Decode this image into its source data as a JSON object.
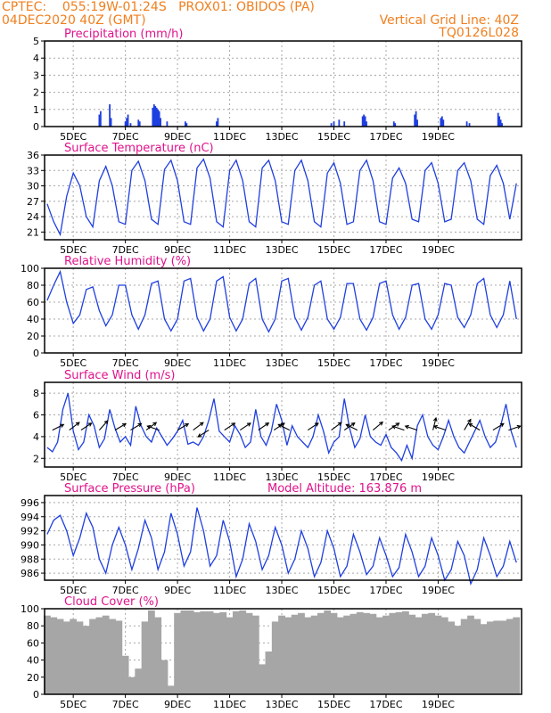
{
  "header": {
    "station": "CPTEC:    055:19W-01:24S   PROX01: OBIDOS (PA)",
    "date": "04DEC2020 40Z (GMT)",
    "grid_note": "Vertical Grid Line: 40Z",
    "code": "TQ0126L028"
  },
  "colors": {
    "header": "#f07f1e",
    "title": "#e0128b",
    "series": "#1f3fe0",
    "bar": "#1f3fe0",
    "cloud": "#a6a6a6"
  },
  "x_tick_labels": [
    "5DEC",
    "7DEC",
    "9DEC",
    "11DEC",
    "13DEC",
    "15DEC",
    "17DEC",
    "19DEC"
  ],
  "chart_data": [
    {
      "id": "precip",
      "type": "bar",
      "title": "Precipitation (mm/h)",
      "ylim": [
        0,
        5
      ],
      "yticks": [
        0,
        1,
        2,
        3,
        4,
        5
      ],
      "grid": true,
      "x_unit": "days since 04DEC2020 00Z",
      "x": [
        2.0,
        2.05,
        2.4,
        2.45,
        3.0,
        3.05,
        3.1,
        3.2,
        3.5,
        3.55,
        4.05,
        4.1,
        4.15,
        4.2,
        4.25,
        4.3,
        4.35,
        4.6,
        5.3,
        5.35,
        6.5,
        6.55,
        10.9,
        11.0,
        11.2,
        11.4,
        12.1,
        12.15,
        12.2,
        12.25,
        13.3,
        13.35,
        14.1,
        14.15,
        14.2,
        15.1,
        15.15,
        15.2,
        16.1,
        16.2,
        17.3,
        17.35,
        17.4,
        17.45
      ],
      "values": [
        0.7,
        0.9,
        1.3,
        0.5,
        0.3,
        0.5,
        0.7,
        0.2,
        0.4,
        0.3,
        1.1,
        1.3,
        1.2,
        1.1,
        1.0,
        0.9,
        0.5,
        0.3,
        0.3,
        0.2,
        0.3,
        0.5,
        0.2,
        0.3,
        0.4,
        0.3,
        0.6,
        0.7,
        0.6,
        0.3,
        0.3,
        0.2,
        0.7,
        0.9,
        0.4,
        0.5,
        0.6,
        0.4,
        0.3,
        0.2,
        0.8,
        0.6,
        0.4,
        0.2
      ]
    },
    {
      "id": "temp",
      "type": "line",
      "title": "Surface Temperature (nC)",
      "ylim": [
        19.5,
        36
      ],
      "yticks": [
        21,
        24,
        27,
        30,
        33,
        36
      ],
      "grid": true,
      "x": [
        0.0,
        0.25,
        0.5,
        0.75,
        1.0,
        1.25,
        1.5,
        1.75,
        2.0,
        2.25,
        2.5,
        2.75,
        3.0,
        3.25,
        3.5,
        3.75,
        4.0,
        4.25,
        4.5,
        4.75,
        5.0,
        5.25,
        5.5,
        5.75,
        6.0,
        6.25,
        6.5,
        6.75,
        7.0,
        7.25,
        7.5,
        7.75,
        8.0,
        8.25,
        8.5,
        8.75,
        9.0,
        9.25,
        9.5,
        9.75,
        10.0,
        10.25,
        10.5,
        10.75,
        11.0,
        11.25,
        11.5,
        11.75,
        12.0,
        12.25,
        12.5,
        12.75,
        13.0,
        13.25,
        13.5,
        13.75,
        14.0,
        14.25,
        14.5,
        14.75,
        15.0,
        15.25,
        15.5,
        15.75,
        16.0,
        16.25,
        16.5,
        16.75,
        17.0,
        17.25,
        17.5,
        17.75,
        18.0
      ],
      "values": [
        26.5,
        23.0,
        20.5,
        28.0,
        32.5,
        30.0,
        24.0,
        22.0,
        31.0,
        33.8,
        30.0,
        23.0,
        22.5,
        33.0,
        34.8,
        31.0,
        23.5,
        22.5,
        33.2,
        35.0,
        31.0,
        23.0,
        22.5,
        33.5,
        35.2,
        31.5,
        23.0,
        22.0,
        33.0,
        35.0,
        31.0,
        23.0,
        22.0,
        33.5,
        35.0,
        31.0,
        23.0,
        22.5,
        33.0,
        35.0,
        31.0,
        23.0,
        22.0,
        32.5,
        34.5,
        30.5,
        22.5,
        23.0,
        33.0,
        35.0,
        31.0,
        23.0,
        22.5,
        31.5,
        33.5,
        30.5,
        23.5,
        23.0,
        33.0,
        34.5,
        30.5,
        23.0,
        23.5,
        33.0,
        34.5,
        31.0,
        23.5,
        22.5,
        32.0,
        34.0,
        30.5,
        23.5,
        30.5
      ]
    },
    {
      "id": "rh",
      "type": "line",
      "title": "Relative Humidity (%)",
      "ylim": [
        0,
        100
      ],
      "yticks": [
        0,
        20,
        40,
        60,
        80,
        100
      ],
      "grid": true,
      "x": [
        0.0,
        0.25,
        0.5,
        0.75,
        1.0,
        1.25,
        1.5,
        1.75,
        2.0,
        2.25,
        2.5,
        2.75,
        3.0,
        3.25,
        3.5,
        3.75,
        4.0,
        4.25,
        4.5,
        4.75,
        5.0,
        5.25,
        5.5,
        5.75,
        6.0,
        6.25,
        6.5,
        6.75,
        7.0,
        7.25,
        7.5,
        7.75,
        8.0,
        8.25,
        8.5,
        8.75,
        9.0,
        9.25,
        9.5,
        9.75,
        10.0,
        10.25,
        10.5,
        10.75,
        11.0,
        11.25,
        11.5,
        11.75,
        12.0,
        12.25,
        12.5,
        12.75,
        13.0,
        13.25,
        13.5,
        13.75,
        14.0,
        14.25,
        14.5,
        14.75,
        15.0,
        15.25,
        15.5,
        15.75,
        16.0,
        16.25,
        16.5,
        16.75,
        17.0,
        17.25,
        17.5,
        17.75,
        18.0
      ],
      "values": [
        62,
        80,
        96,
        60,
        35,
        45,
        75,
        78,
        50,
        32,
        45,
        80,
        80,
        45,
        28,
        45,
        82,
        85,
        40,
        26,
        40,
        85,
        88,
        42,
        26,
        40,
        85,
        90,
        42,
        26,
        40,
        82,
        88,
        40,
        25,
        40,
        85,
        88,
        42,
        27,
        42,
        80,
        85,
        40,
        28,
        42,
        82,
        82,
        40,
        27,
        42,
        82,
        85,
        45,
        28,
        42,
        80,
        82,
        40,
        28,
        45,
        82,
        80,
        42,
        30,
        45,
        82,
        88,
        45,
        30,
        45,
        85,
        40
      ]
    },
    {
      "id": "wind",
      "type": "line",
      "title": "Surface Wind (m/s)",
      "ylim": [
        1.2,
        9
      ],
      "yticks": [
        2,
        4,
        6,
        8
      ],
      "grid": true,
      "x": [
        0.0,
        0.2,
        0.4,
        0.6,
        0.8,
        1.0,
        1.2,
        1.4,
        1.6,
        1.8,
        2.0,
        2.2,
        2.4,
        2.6,
        2.8,
        3.0,
        3.2,
        3.4,
        3.6,
        3.8,
        4.0,
        4.2,
        4.4,
        4.6,
        4.8,
        5.0,
        5.2,
        5.4,
        5.6,
        5.8,
        6.0,
        6.2,
        6.4,
        6.6,
        6.8,
        7.0,
        7.2,
        7.4,
        7.6,
        7.8,
        8.0,
        8.2,
        8.4,
        8.6,
        8.8,
        9.0,
        9.2,
        9.4,
        9.6,
        9.8,
        10.0,
        10.2,
        10.4,
        10.6,
        10.8,
        11.0,
        11.2,
        11.4,
        11.6,
        11.8,
        12.0,
        12.2,
        12.4,
        12.6,
        12.8,
        13.0,
        13.2,
        13.4,
        13.6,
        13.8,
        14.0,
        14.2,
        14.4,
        14.6,
        14.8,
        15.0,
        15.2,
        15.4,
        15.6,
        15.8,
        16.0,
        16.2,
        16.4,
        16.6,
        16.8,
        17.0,
        17.2,
        17.4,
        17.6,
        17.8,
        18.0
      ],
      "values": [
        3.0,
        2.6,
        3.5,
        6.5,
        8.0,
        4.5,
        2.8,
        3.5,
        6.0,
        5.0,
        3.0,
        3.8,
        6.5,
        4.8,
        3.5,
        4.0,
        3.2,
        6.8,
        5.0,
        4.0,
        3.5,
        4.8,
        4.0,
        3.2,
        3.8,
        4.5,
        5.5,
        3.3,
        3.5,
        3.2,
        4.0,
        5.5,
        7.5,
        4.5,
        4.0,
        3.5,
        5.0,
        4.2,
        3.0,
        3.5,
        6.5,
        4.0,
        3.2,
        4.5,
        7.0,
        5.5,
        3.2,
        5.0,
        4.0,
        3.5,
        3.0,
        4.0,
        6.0,
        4.5,
        2.5,
        3.5,
        4.0,
        7.5,
        4.8,
        3.0,
        3.8,
        6.0,
        4.0,
        3.5,
        3.2,
        4.2,
        3.0,
        2.5,
        1.8,
        3.2,
        2.0,
        5.0,
        6.0,
        4.0,
        3.2,
        2.8,
        4.0,
        5.5,
        4.0,
        3.0,
        2.5,
        3.5,
        4.5,
        5.5,
        4.0,
        3.0,
        3.5,
        5.0,
        7.0,
        4.5,
        3.0
      ],
      "vectors": {
        "x": [
          0.2,
          0.85,
          1.3,
          2.0,
          2.6,
          3.2,
          3.8,
          4.3,
          5.0,
          5.6,
          6.2,
          6.8,
          7.4,
          8.1,
          8.7,
          9.3,
          10.0,
          10.9,
          11.4,
          11.9,
          12.5,
          13.1,
          13.7,
          14.2,
          14.8,
          15.3,
          16.0,
          16.6,
          17.1,
          17.7
        ],
        "u": [
          1.0,
          1.3,
          1.2,
          0.8,
          1.2,
          1.0,
          1.2,
          -1.2,
          1.2,
          1.2,
          -0.8,
          1.2,
          1.2,
          1.3,
          1.2,
          -1.0,
          1.2,
          1.2,
          1.3,
          -1.0,
          1.2,
          1.2,
          -1.2,
          -1.2,
          0.3,
          -1.2,
          0.6,
          -1.2,
          1.0,
          1.2
        ],
        "v": [
          0.5,
          1.0,
          0.8,
          0.9,
          0.7,
          0.6,
          0.9,
          0.4,
          0.7,
          0.9,
          -0.5,
          0.8,
          0.8,
          0.9,
          0.8,
          0.5,
          0.8,
          0.9,
          0.9,
          0.5,
          1.0,
          0.8,
          0.4,
          0.4,
          1.2,
          0.4,
          1.0,
          0.7,
          0.6,
          0.4
        ]
      }
    },
    {
      "id": "pres",
      "type": "line",
      "title": "Surface Pressure (hPa)",
      "annotation": "Model Altitude: 163.876 m",
      "ylim": [
        985,
        997
      ],
      "yticks": [
        986,
        988,
        990,
        992,
        994,
        996
      ],
      "grid": true,
      "x": [
        0.0,
        0.25,
        0.5,
        0.75,
        1.0,
        1.25,
        1.5,
        1.75,
        2.0,
        2.25,
        2.5,
        2.75,
        3.0,
        3.25,
        3.5,
        3.75,
        4.0,
        4.25,
        4.5,
        4.75,
        5.0,
        5.25,
        5.5,
        5.75,
        6.0,
        6.25,
        6.5,
        6.75,
        7.0,
        7.25,
        7.5,
        7.75,
        8.0,
        8.25,
        8.5,
        8.75,
        9.0,
        9.25,
        9.5,
        9.75,
        10.0,
        10.25,
        10.5,
        10.75,
        11.0,
        11.25,
        11.5,
        11.75,
        12.0,
        12.25,
        12.5,
        12.75,
        13.0,
        13.25,
        13.5,
        13.75,
        14.0,
        14.25,
        14.5,
        14.75,
        15.0,
        15.25,
        15.5,
        15.75,
        16.0,
        16.25,
        16.5,
        16.75,
        17.0,
        17.25,
        17.5,
        17.75,
        18.0
      ],
      "values": [
        991.5,
        993.5,
        994.2,
        992.0,
        988.5,
        991.0,
        994.5,
        992.5,
        988.0,
        986.0,
        990.0,
        992.5,
        990.0,
        986.5,
        989.5,
        993.5,
        991.0,
        986.5,
        989.0,
        994.5,
        991.5,
        987.0,
        989.0,
        995.3,
        992.0,
        987.0,
        988.5,
        993.5,
        990.5,
        985.5,
        988.0,
        993.0,
        990.5,
        986.5,
        988.5,
        992.5,
        990.0,
        986.0,
        988.0,
        992.0,
        989.5,
        985.5,
        987.5,
        992.0,
        989.5,
        985.5,
        987.0,
        991.5,
        989.0,
        985.8,
        987.0,
        991.0,
        988.5,
        985.5,
        986.8,
        991.5,
        989.0,
        985.5,
        987.0,
        991.0,
        988.5,
        985.0,
        986.5,
        990.5,
        988.5,
        984.5,
        986.5,
        991.0,
        988.5,
        985.5,
        987.0,
        990.5,
        987.5
      ]
    },
    {
      "id": "cloud",
      "type": "bar",
      "title": "Cloud Cover (%)",
      "ylim": [
        0,
        100
      ],
      "yticks": [
        0,
        20,
        40,
        60,
        80,
        100
      ],
      "grid": true,
      "x": [
        0.0,
        0.25,
        0.5,
        0.75,
        1.0,
        1.25,
        1.5,
        1.75,
        2.0,
        2.25,
        2.5,
        2.75,
        3.0,
        3.25,
        3.5,
        3.75,
        4.0,
        4.25,
        4.5,
        4.75,
        5.0,
        5.25,
        5.5,
        5.75,
        6.0,
        6.25,
        6.5,
        6.75,
        7.0,
        7.25,
        7.5,
        7.75,
        8.0,
        8.25,
        8.5,
        8.75,
        9.0,
        9.25,
        9.5,
        9.75,
        10.0,
        10.25,
        10.5,
        10.75,
        11.0,
        11.25,
        11.5,
        11.75,
        12.0,
        12.25,
        12.5,
        12.75,
        13.0,
        13.25,
        13.5,
        13.75,
        14.0,
        14.25,
        14.5,
        14.75,
        15.0,
        15.25,
        15.5,
        15.75,
        16.0,
        16.25,
        16.5,
        16.75,
        17.0,
        17.25,
        17.5,
        17.75,
        18.0
      ],
      "values": [
        92,
        90,
        88,
        85,
        88,
        85,
        80,
        88,
        90,
        92,
        88,
        86,
        45,
        20,
        30,
        85,
        98,
        90,
        40,
        10,
        95,
        98,
        98,
        96,
        97,
        97,
        95,
        96,
        90,
        97,
        98,
        95,
        92,
        35,
        50,
        85,
        92,
        90,
        93,
        95,
        90,
        92,
        95,
        98,
        95,
        90,
        92,
        94,
        96,
        95,
        94,
        90,
        92,
        95,
        96,
        97,
        93,
        90,
        94,
        95,
        92,
        90,
        85,
        80,
        88,
        92,
        88,
        82,
        85,
        86,
        86,
        88,
        90
      ]
    }
  ]
}
